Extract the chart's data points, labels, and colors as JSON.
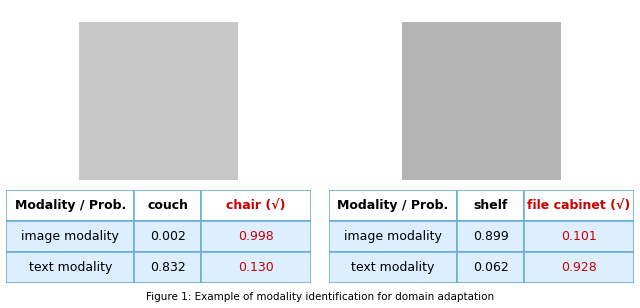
{
  "left_image_path": null,
  "right_image_path": null,
  "table1": {
    "header": [
      "Modality / Prob.",
      "couch",
      "chair (√)"
    ],
    "header_col2_color": "black",
    "header_col3_color": "#cc0000",
    "rows": [
      [
        "image modality",
        "0.002",
        "0.998"
      ],
      [
        "text modality",
        "0.832",
        "0.130"
      ]
    ],
    "col3_color": "#cc0000",
    "col2_color": "black"
  },
  "table2": {
    "header": [
      "Modality / Prob.",
      "shelf",
      "file cabinet (√)"
    ],
    "header_col2_color": "black",
    "header_col3_color": "#cc0000",
    "rows": [
      [
        "image modality",
        "0.899",
        "0.101"
      ],
      [
        "text modality",
        "0.062",
        "0.928"
      ]
    ],
    "col3_color": "#cc0000",
    "col2_color": "black"
  },
  "caption": "Figure 1: Example of modality identification for domain adaptation",
  "table_border_color": "#6baed6",
  "table_header_bg": "#ffffff",
  "table_row_bg": "#ddeeff",
  "table_header_font_size": 9,
  "table_row_font_size": 9,
  "left_img_url": "chair_image",
  "right_img_url": "shelf_image"
}
